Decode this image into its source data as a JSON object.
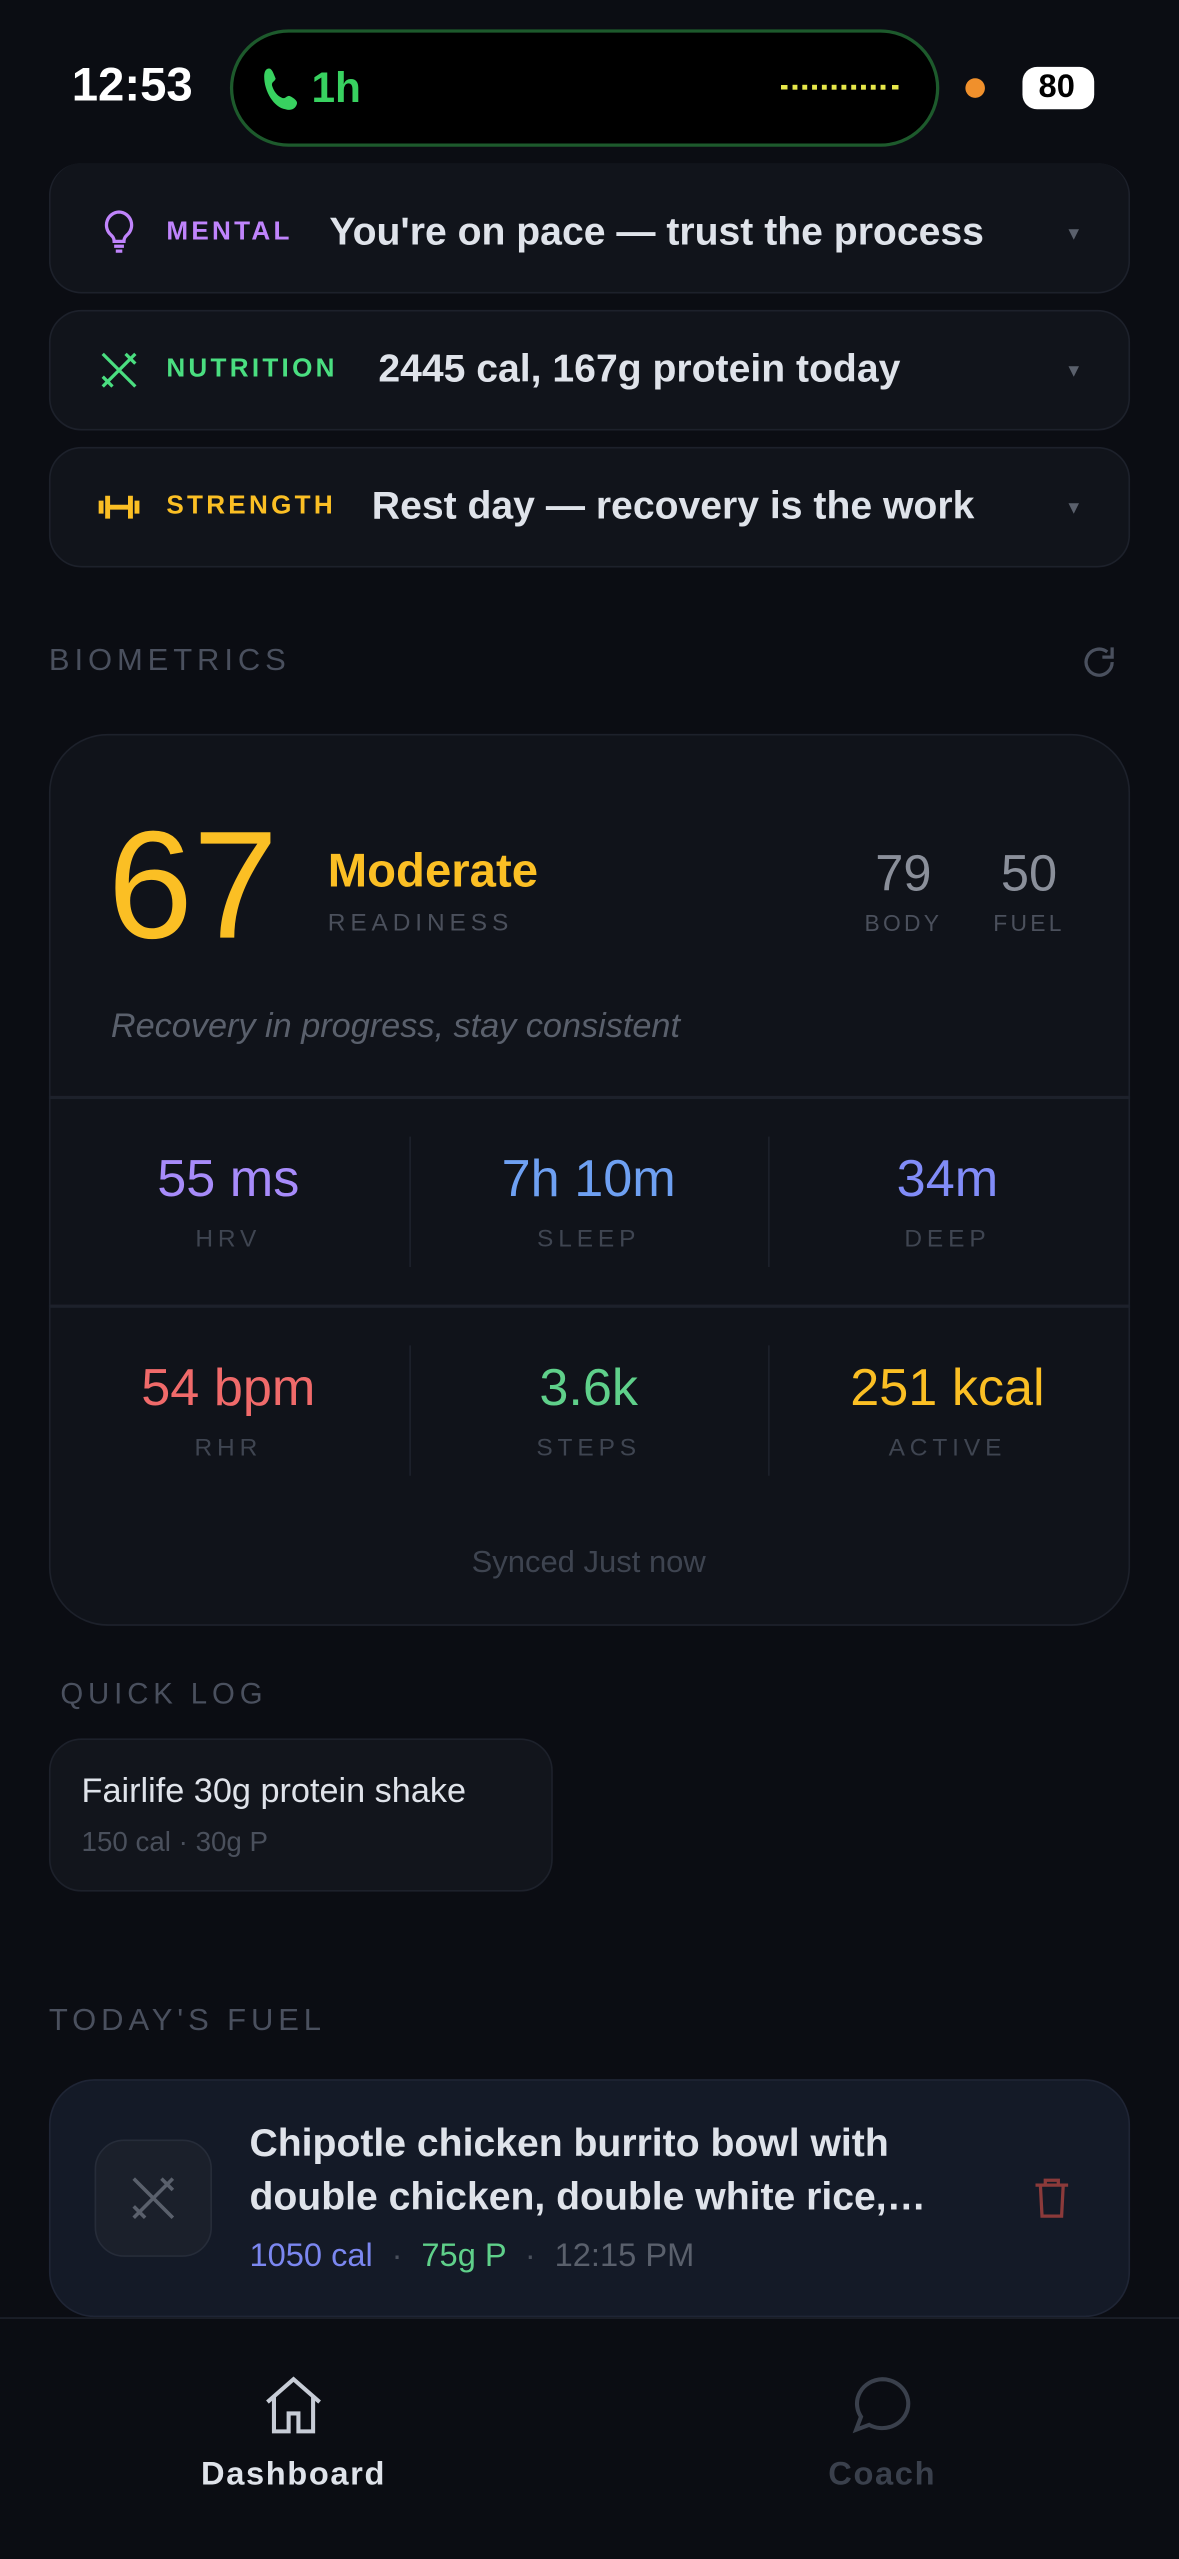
{
  "status_bar": {
    "time": "12:53",
    "call": "1h",
    "battery": "80"
  },
  "insights": [
    {
      "tag": "MENTAL",
      "text": "You're on pace — trust the process"
    },
    {
      "tag": "NUTRITION",
      "text": "2445 cal, 167g protein today"
    },
    {
      "tag": "STRENGTH",
      "text": "Rest day — recovery is the work"
    }
  ],
  "biometrics": {
    "title": "BIOMETRICS",
    "score": "67",
    "level": "Moderate",
    "level_label": "READINESS",
    "sub_scores": [
      {
        "value": "79",
        "label": "BODY"
      },
      {
        "value": "50",
        "label": "FUEL"
      }
    ],
    "message": "Recovery in progress, stay consistent",
    "metrics": [
      {
        "value": "55 ms",
        "label": "HRV"
      },
      {
        "value": "7h 10m",
        "label": "SLEEP"
      },
      {
        "value": "34m",
        "label": "DEEP"
      },
      {
        "value": "54 bpm",
        "label": "RHR"
      },
      {
        "value": "3.6k",
        "label": "STEPS"
      },
      {
        "value": "251 kcal",
        "label": "ACTIVE"
      }
    ],
    "synced": "Synced Just now"
  },
  "quick_log": {
    "title": "QUICK LOG",
    "items": [
      {
        "name": "Fairlife 30g protein shake",
        "detail": "150 cal · 30g P"
      }
    ]
  },
  "todays_fuel": {
    "title": "TODAY'S FUEL",
    "separator": "·",
    "items": [
      {
        "name": "Chipotle chicken burrito bowl with double chicken, double white rice, black beans, cheese, salsa",
        "calories": "1050 cal",
        "protein": "75g P",
        "time": "12:15 PM"
      }
    ]
  },
  "nav": [
    {
      "label": "Dashboard"
    },
    {
      "label": "Coach"
    }
  ]
}
